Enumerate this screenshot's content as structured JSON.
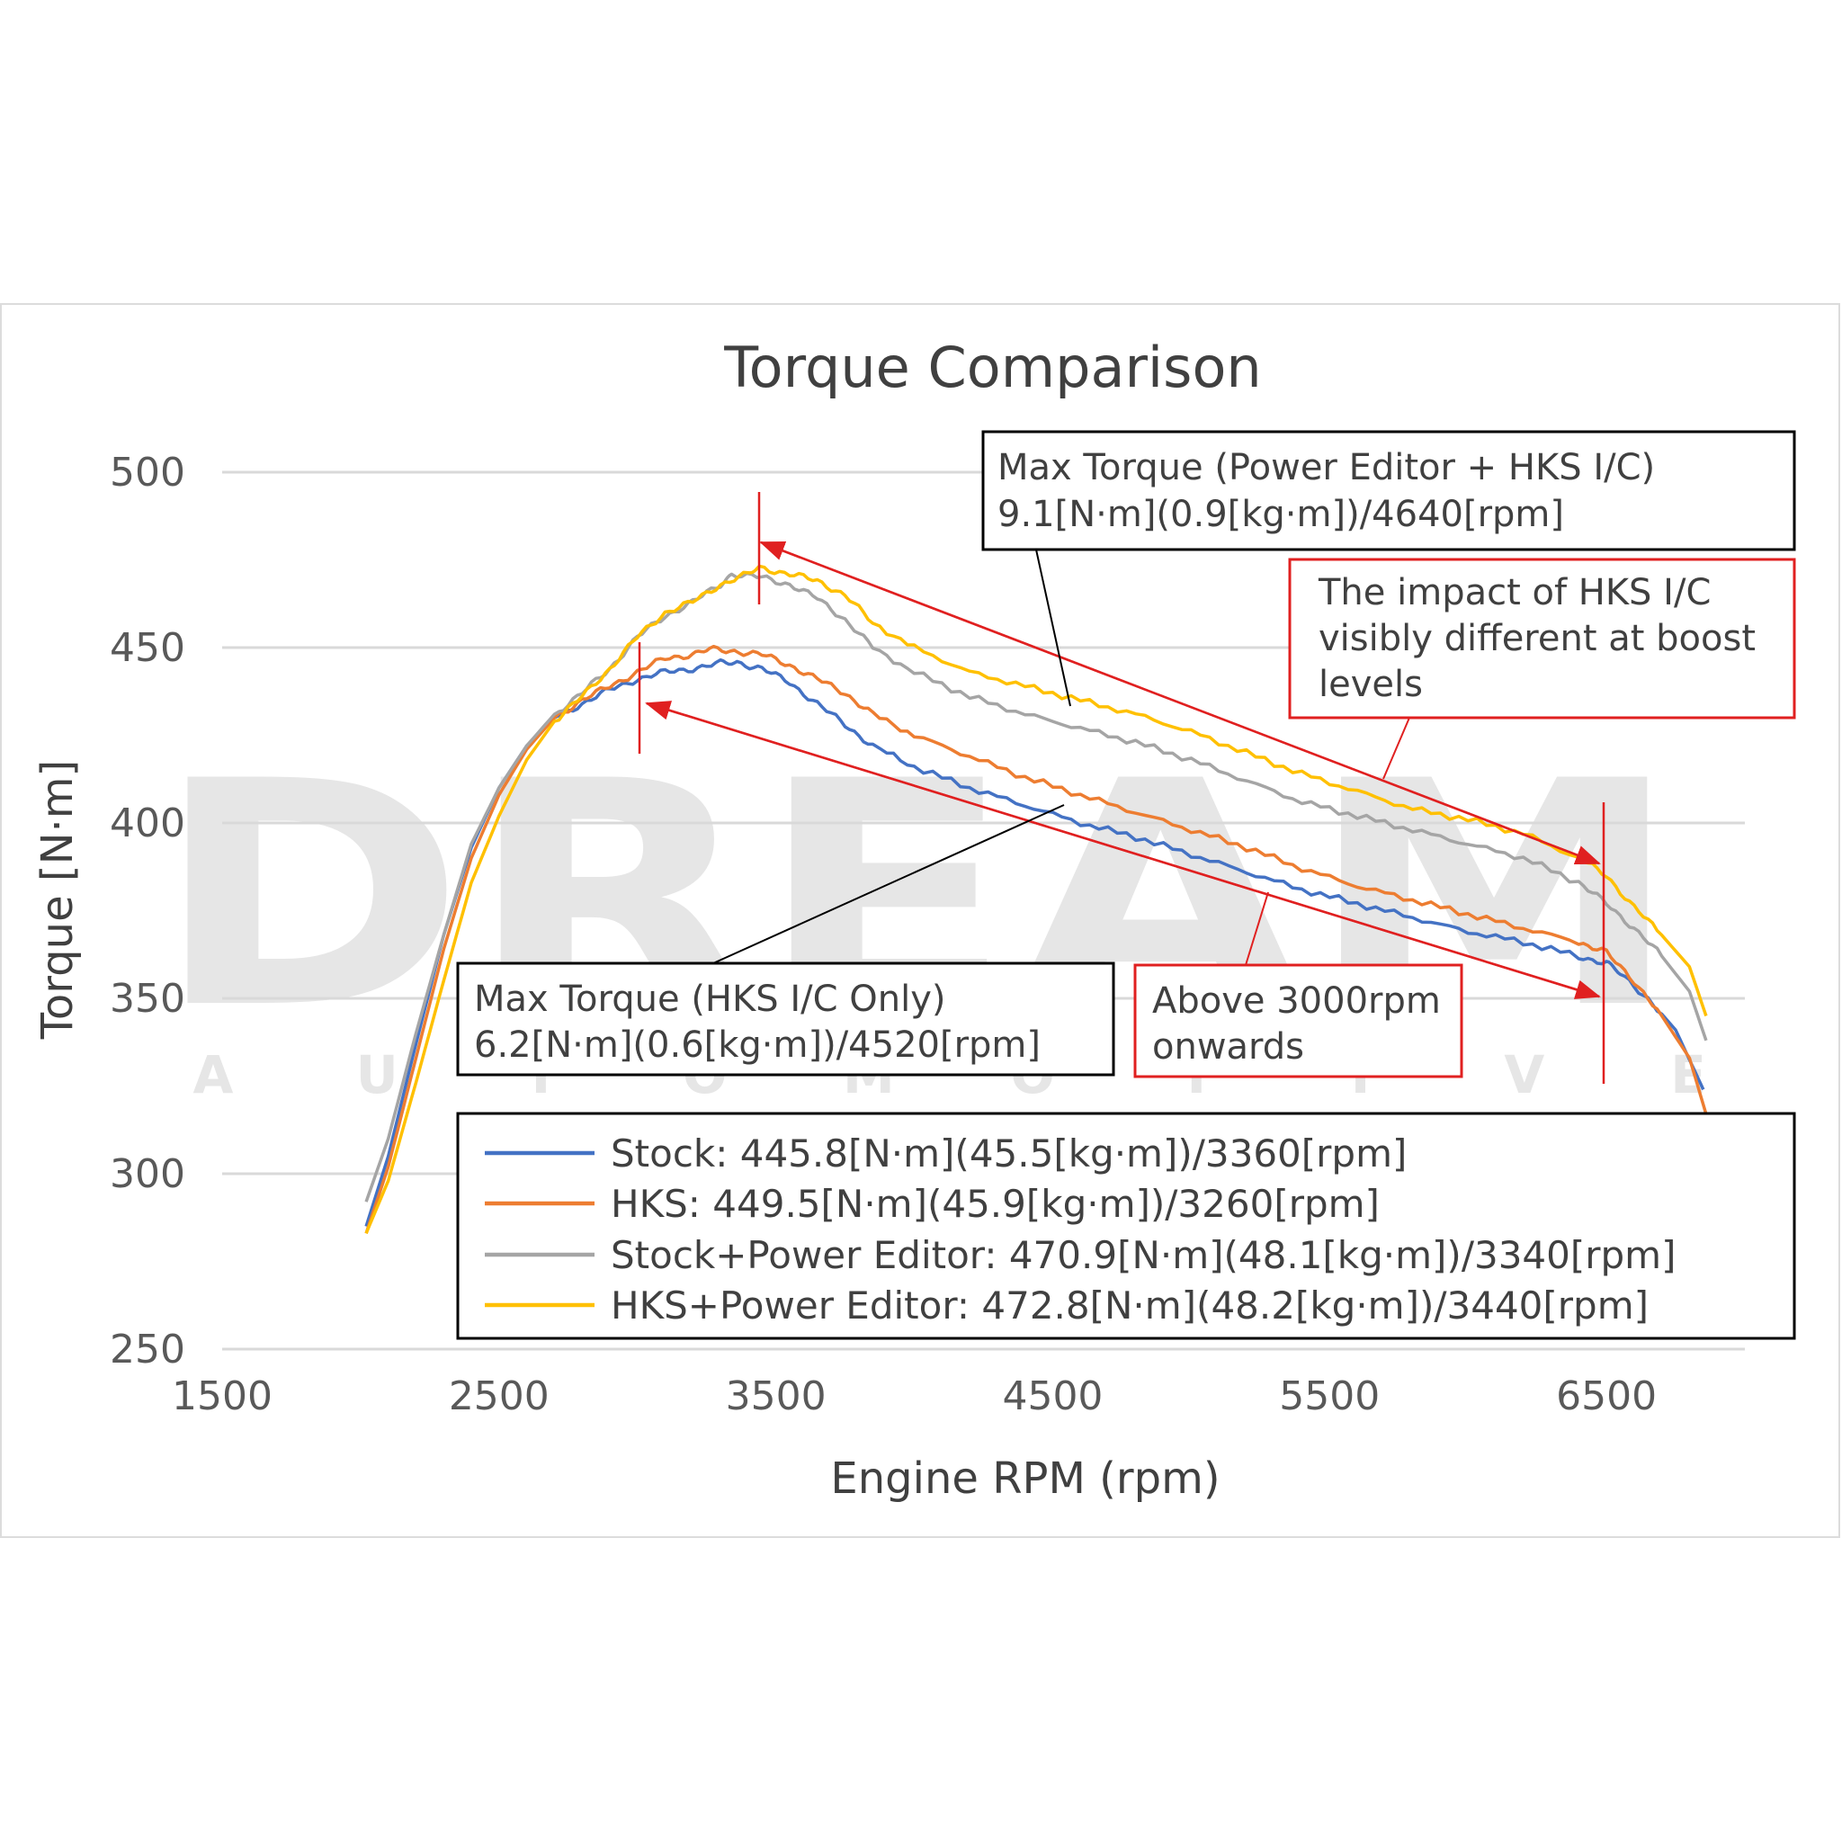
{
  "chart_data": {
    "type": "line",
    "title": "Torque Comparison",
    "xlabel": "Engine RPM (rpm)",
    "ylabel": "Torque [N·m]",
    "xlim": [
      1500,
      7000
    ],
    "ylim": [
      250,
      500
    ],
    "x_ticks": [
      "1500",
      "2500",
      "3500",
      "4500",
      "5500",
      "6500"
    ],
    "y_ticks": [
      "250",
      "300",
      "350",
      "400",
      "450",
      "500"
    ],
    "grid": "horizontal",
    "legend_position": "bottom-right",
    "watermark": {
      "word": "DREAM",
      "sub": "AUTOMOTIVE"
    },
    "series": [
      {
        "name": "Stock",
        "legend_label": "Stock: 445.8[N·m](45.5[kg·m])/3360[rpm]",
        "color": "#4472c4",
        "points": [
          [
            2020,
            285
          ],
          [
            2100,
            305
          ],
          [
            2200,
            337
          ],
          [
            2300,
            368
          ],
          [
            2400,
            393
          ],
          [
            2500,
            410
          ],
          [
            2600,
            422
          ],
          [
            2700,
            430
          ],
          [
            2800,
            434
          ],
          [
            2900,
            438
          ],
          [
            3000,
            441
          ],
          [
            3100,
            443
          ],
          [
            3200,
            444
          ],
          [
            3300,
            445.5
          ],
          [
            3360,
            445.8
          ],
          [
            3450,
            444
          ],
          [
            3550,
            440
          ],
          [
            3650,
            434
          ],
          [
            3750,
            428
          ],
          [
            3850,
            422
          ],
          [
            4000,
            416
          ],
          [
            4200,
            410
          ],
          [
            4400,
            405
          ],
          [
            4600,
            400
          ],
          [
            4800,
            396
          ],
          [
            5000,
            391
          ],
          [
            5200,
            386
          ],
          [
            5400,
            381
          ],
          [
            5600,
            377
          ],
          [
            5800,
            373
          ],
          [
            6000,
            369
          ],
          [
            6200,
            366
          ],
          [
            6400,
            362
          ],
          [
            6500,
            360
          ],
          [
            6550,
            357
          ],
          [
            6650,
            350
          ],
          [
            6750,
            341
          ],
          [
            6850,
            324
          ]
        ]
      },
      {
        "name": "HKS",
        "legend_label": "HKS: 449.5[N·m](45.9[kg·m])/3260[rpm]",
        "color": "#ed7d31",
        "points": [
          [
            2020,
            283
          ],
          [
            2100,
            302
          ],
          [
            2200,
            333
          ],
          [
            2300,
            364
          ],
          [
            2400,
            390
          ],
          [
            2500,
            408
          ],
          [
            2600,
            421
          ],
          [
            2700,
            430
          ],
          [
            2800,
            435
          ],
          [
            2900,
            439
          ],
          [
            3000,
            443
          ],
          [
            3100,
            447
          ],
          [
            3200,
            448
          ],
          [
            3260,
            449.5
          ],
          [
            3350,
            449
          ],
          [
            3450,
            448
          ],
          [
            3550,
            445
          ],
          [
            3650,
            441
          ],
          [
            3750,
            437
          ],
          [
            3850,
            431
          ],
          [
            4000,
            425
          ],
          [
            4200,
            419
          ],
          [
            4400,
            413
          ],
          [
            4600,
            408
          ],
          [
            4800,
            403
          ],
          [
            5000,
            398
          ],
          [
            5200,
            393
          ],
          [
            5400,
            387
          ],
          [
            5600,
            382
          ],
          [
            5800,
            378
          ],
          [
            6000,
            374
          ],
          [
            6200,
            370
          ],
          [
            6400,
            366
          ],
          [
            6500,
            363
          ],
          [
            6600,
            355
          ],
          [
            6700,
            345
          ],
          [
            6800,
            333
          ],
          [
            6860,
            317
          ]
        ]
      },
      {
        "name": "Stock+Power Editor",
        "legend_label": "Stock+Power Editor: 470.9[N·m](48.1[kg·m])/3340[rpm]",
        "color": "#a5a5a5",
        "points": [
          [
            2020,
            292
          ],
          [
            2100,
            310
          ],
          [
            2200,
            340
          ],
          [
            2300,
            368
          ],
          [
            2400,
            394
          ],
          [
            2500,
            410
          ],
          [
            2600,
            422
          ],
          [
            2700,
            431
          ],
          [
            2800,
            437
          ],
          [
            2900,
            444
          ],
          [
            3000,
            453
          ],
          [
            3100,
            459
          ],
          [
            3200,
            463
          ],
          [
            3300,
            468
          ],
          [
            3340,
            470.9
          ],
          [
            3450,
            470
          ],
          [
            3550,
            468
          ],
          [
            3650,
            464
          ],
          [
            3750,
            458
          ],
          [
            3850,
            450
          ],
          [
            4000,
            443
          ],
          [
            4200,
            436
          ],
          [
            4400,
            431
          ],
          [
            4600,
            427
          ],
          [
            4800,
            423
          ],
          [
            5000,
            418
          ],
          [
            5200,
            412
          ],
          [
            5400,
            406
          ],
          [
            5600,
            402
          ],
          [
            5800,
            398
          ],
          [
            6000,
            394
          ],
          [
            6200,
            390
          ],
          [
            6400,
            383
          ],
          [
            6500,
            377
          ],
          [
            6600,
            370
          ],
          [
            6700,
            362
          ],
          [
            6800,
            352
          ],
          [
            6860,
            338
          ]
        ]
      },
      {
        "name": "HKS+Power Editor",
        "legend_label": "HKS+Power Editor: 472.8[N·m](48.2[kg·m])/3440[rpm]",
        "color": "#ffc000",
        "points": [
          [
            2020,
            283
          ],
          [
            2100,
            298
          ],
          [
            2200,
            326
          ],
          [
            2300,
            355
          ],
          [
            2400,
            383
          ],
          [
            2500,
            402
          ],
          [
            2600,
            418
          ],
          [
            2700,
            429
          ],
          [
            2800,
            436
          ],
          [
            2900,
            444
          ],
          [
            3000,
            453
          ],
          [
            3100,
            460
          ],
          [
            3200,
            463
          ],
          [
            3300,
            468
          ],
          [
            3400,
            471
          ],
          [
            3440,
            472.8
          ],
          [
            3550,
            471
          ],
          [
            3650,
            469
          ],
          [
            3750,
            465
          ],
          [
            3850,
            457
          ],
          [
            4000,
            450
          ],
          [
            4200,
            443
          ],
          [
            4400,
            439
          ],
          [
            4600,
            435
          ],
          [
            4800,
            431
          ],
          [
            5000,
            426
          ],
          [
            5200,
            420
          ],
          [
            5400,
            414
          ],
          [
            5600,
            409
          ],
          [
            5800,
            404
          ],
          [
            6000,
            401
          ],
          [
            6200,
            397
          ],
          [
            6400,
            390
          ],
          [
            6500,
            385
          ],
          [
            6600,
            376
          ],
          [
            6700,
            368
          ],
          [
            6800,
            359
          ],
          [
            6860,
            345
          ]
        ]
      }
    ],
    "annotations": [
      {
        "lines": [
          "Max Torque (Power Editor + HKS I/C)",
          "9.1[N·m](0.9[kg·m])/4640[rpm]"
        ],
        "border": "#000000"
      },
      {
        "lines": [
          "The impact of HKS I/C",
          "visibly different at boost",
          "levels"
        ],
        "border": "#e02020"
      },
      {
        "lines": [
          "Max Torque (HKS I/C Only)",
          "6.2[N·m](0.6[kg·m])/4520[rpm]"
        ],
        "border": "#000000"
      },
      {
        "lines": [
          "Above 3000rpm",
          "onwards"
        ],
        "border": "#e02020"
      }
    ]
  }
}
